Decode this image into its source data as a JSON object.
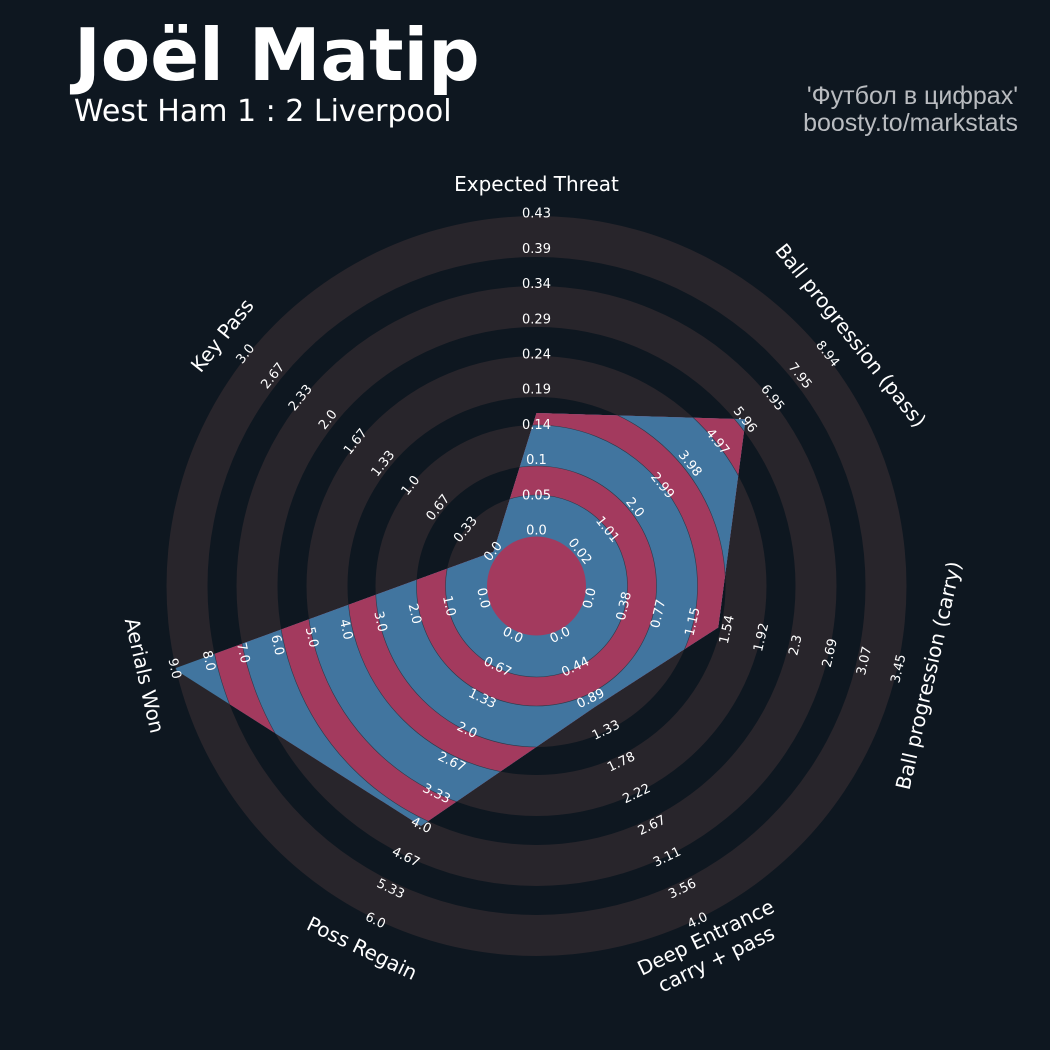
{
  "header": {
    "title": "Joël Matip",
    "subtitle": "West Ham 1 : 2 Liverpool",
    "credit_line1": "'Футбол в цифрах'",
    "credit_line2": "boosty.to/markstats"
  },
  "colors": {
    "background": "#0e1720",
    "ring_grey": "#28252b",
    "ring_dark": "#0e1720",
    "radar_red": "#a33a5e",
    "radar_blue": "#41759f"
  },
  "chart_data": {
    "type": "radar",
    "title": "Joël Matip",
    "params": [
      {
        "name": [
          "Expected Threat"
        ],
        "min": 0,
        "max": 0.43,
        "value": 0.16,
        "ticks": [
          "0.0",
          "0.05",
          "0.1",
          "0.14",
          "0.19",
          "0.24",
          "0.29",
          "0.34",
          "0.39",
          "0.43"
        ]
      },
      {
        "name": [
          "Ball progression (pass)"
        ],
        "min": 0.02,
        "max": 8.94,
        "value": 6.0,
        "ticks": [
          "0.02",
          "1.01",
          "2.0",
          "2.99",
          "3.98",
          "4.97",
          "5.96",
          "6.95",
          "7.95",
          "8.94"
        ]
      },
      {
        "name": [
          "Ball progression (carry)"
        ],
        "min": 0,
        "max": 3.45,
        "value": 1.43,
        "ticks": [
          "0.0",
          "0.38",
          "0.77",
          "1.15",
          "1.54",
          "1.92",
          "2.3",
          "2.69",
          "3.07",
          "3.45"
        ]
      },
      {
        "name": [
          "Deep Entrance",
          "carry + pass"
        ],
        "min": 0,
        "max": 4.0,
        "value": 1.0,
        "ticks": [
          "0.0",
          "0.44",
          "0.89",
          "1.33",
          "1.78",
          "2.22",
          "2.67",
          "3.11",
          "3.56",
          "4.0"
        ]
      },
      {
        "name": [
          "Poss Regain"
        ],
        "min": 0,
        "max": 6.0,
        "value": 4.0,
        "ticks": [
          "0.0",
          "0.67",
          "1.33",
          "2.0",
          "2.67",
          "3.33",
          "4.0",
          "4.67",
          "5.33",
          "6.0"
        ]
      },
      {
        "name": [
          "Aerials Won"
        ],
        "min": 0,
        "max": 9.0,
        "value": 9.0,
        "ticks": [
          "0.0",
          "1.0",
          "2.0",
          "3.0",
          "4.0",
          "5.0",
          "6.0",
          "7.0",
          "8.0",
          "9.0"
        ]
      },
      {
        "name": [
          "Key Pass"
        ],
        "min": 0,
        "max": 3.0,
        "value": 0.0,
        "ticks": [
          "0.0",
          "0.33",
          "0.67",
          "1.0",
          "1.33",
          "1.67",
          "2.0",
          "2.33",
          "2.67",
          "3.0"
        ]
      }
    ]
  }
}
